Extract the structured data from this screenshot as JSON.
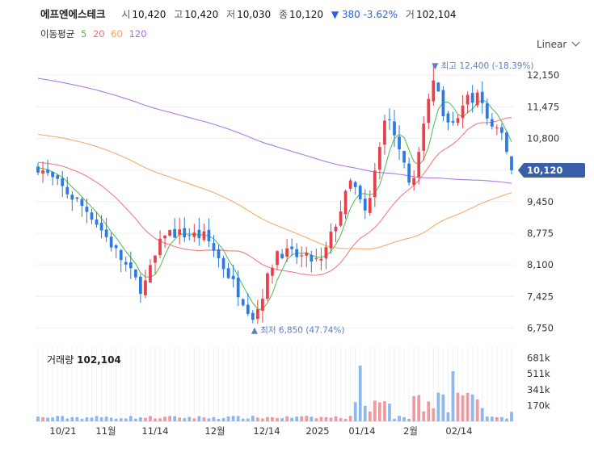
{
  "header": {
    "name": "에프엔에스테크",
    "open_label": "시",
    "open": "10,420",
    "high_label": "고",
    "high": "10,420",
    "low_label": "저",
    "low": "10,030",
    "close_label": "종",
    "close": "10,120",
    "change": "▼ 380 -3.62%",
    "volume_label": "거",
    "volume": "102,104"
  },
  "ma_legend": {
    "label": "이동평균",
    "p5": "5",
    "p20": "20",
    "p60": "60",
    "p120": "120"
  },
  "scale_mode": "Linear",
  "chart_data": {
    "type": "candlestick",
    "y_ticks": [
      "12,150",
      "11,475",
      "10,800",
      "10,120",
      "9,450",
      "8,775",
      "8,100",
      "7,425",
      "6,750"
    ],
    "y_tick_values": [
      12150,
      11475,
      10800,
      10120,
      9450,
      8775,
      8100,
      7425,
      6750
    ],
    "ylim": [
      6550,
      12550
    ],
    "x_ticks": [
      "10/21",
      "11월",
      "11/14",
      "12월",
      "12/14",
      "2025",
      "01/14",
      "2월",
      "02/14"
    ],
    "current_price_label": "10,120",
    "current_price": 10120,
    "max_annotation": "▼ 최고 12,400 (-18.39%)",
    "min_annotation": "▲ 최저 6,850 (47.74%)",
    "max_value": 12400,
    "min_value": 6850,
    "colors": {
      "up": "#e8404a",
      "down": "#2b7be0",
      "ma5": "#4cb84c",
      "ma20": "#f07070",
      "ma60": "#f5a25c",
      "ma120": "#a46be3",
      "badge": "#3a5fa8"
    },
    "volume_panel": {
      "title": "거래량",
      "value": "102,104",
      "y_ticks": [
        "681k",
        "511k",
        "341k",
        "170k"
      ],
      "y_tick_values": [
        681000,
        511000,
        341000,
        170000
      ]
    }
  }
}
